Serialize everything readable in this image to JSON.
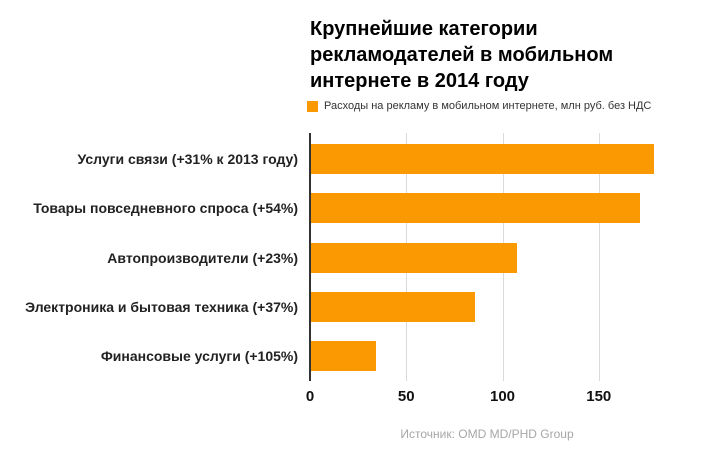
{
  "chart_data": {
    "type": "bar",
    "orientation": "horizontal",
    "title": "Крупнейшие категории рекламодателей в мобильном интернете в 2014 году",
    "title_lines": [
      "Крупнейшие категории",
      "рекламодателей в мобильном",
      "интернете в 2014 году"
    ],
    "legend": {
      "label": "Расходы на рекламу в мобильном интернете, млн руб. без НДС",
      "swatch_color": "#fb9902",
      "position": "top-left-under-title"
    },
    "categories": [
      "Услуги связи (+31% к 2013 году)",
      "Товары повседневного спроса (+54%)",
      "Автопроизводители (+23%)",
      "Электроника и бытовая техника (+37%)",
      "Финансовые услуги (+105%)"
    ],
    "values": [
      178,
      171,
      107,
      85,
      34
    ],
    "xlabel": "",
    "ylabel": "",
    "xticks": [
      0,
      50,
      100,
      150
    ],
    "xlim": [
      0,
      185
    ],
    "grid": "vertical-gridlines-only",
    "bar_color": "#fb9902",
    "axis_color": "#333333",
    "gridline_color": "#d9d9d9",
    "source": "Источник: OMD MD/PHD Group"
  }
}
